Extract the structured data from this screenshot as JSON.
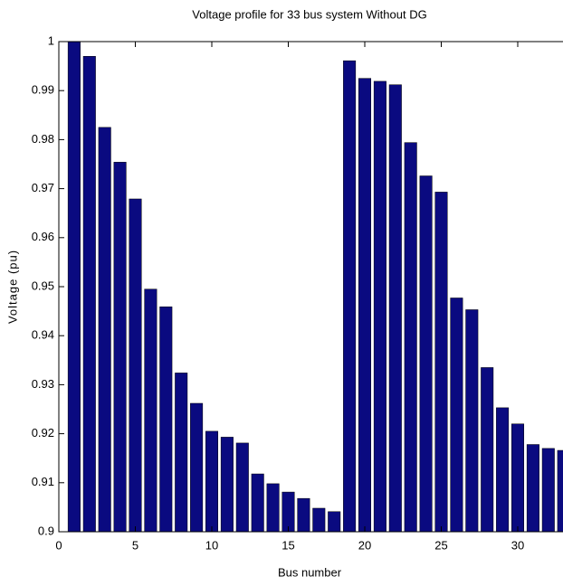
{
  "chart_data": {
    "type": "bar",
    "title": "Voltage profile for 33 bus system Without DG",
    "x_label": "Bus number",
    "y_label": "Voltage (pu)",
    "x": [
      1,
      2,
      3,
      4,
      5,
      6,
      7,
      8,
      9,
      10,
      11,
      12,
      13,
      14,
      15,
      16,
      17,
      18,
      19,
      20,
      21,
      22,
      23,
      24,
      25,
      26,
      27,
      28,
      29,
      30,
      31,
      32,
      33
    ],
    "values": [
      1.0,
      0.997,
      0.9825,
      0.9754,
      0.9679,
      0.9495,
      0.9459,
      0.9324,
      0.9262,
      0.9205,
      0.9193,
      0.9181,
      0.9118,
      0.9098,
      0.9081,
      0.9068,
      0.9048,
      0.9041,
      0.9961,
      0.9925,
      0.9919,
      0.9912,
      0.9794,
      0.9726,
      0.9693,
      0.9477,
      0.9453,
      0.9335,
      0.9253,
      0.922,
      0.9178,
      0.917,
      0.9166
    ],
    "color": "#0a0a80",
    "xlim": [
      0,
      34
    ],
    "xticks": [
      0,
      5,
      10,
      15,
      20,
      25,
      30
    ],
    "ylim": [
      0.9,
      1
    ],
    "yticks": [
      0.9,
      0.91,
      0.92,
      0.93,
      0.94,
      0.95,
      0.96,
      0.97,
      0.98,
      0.99,
      1
    ]
  }
}
